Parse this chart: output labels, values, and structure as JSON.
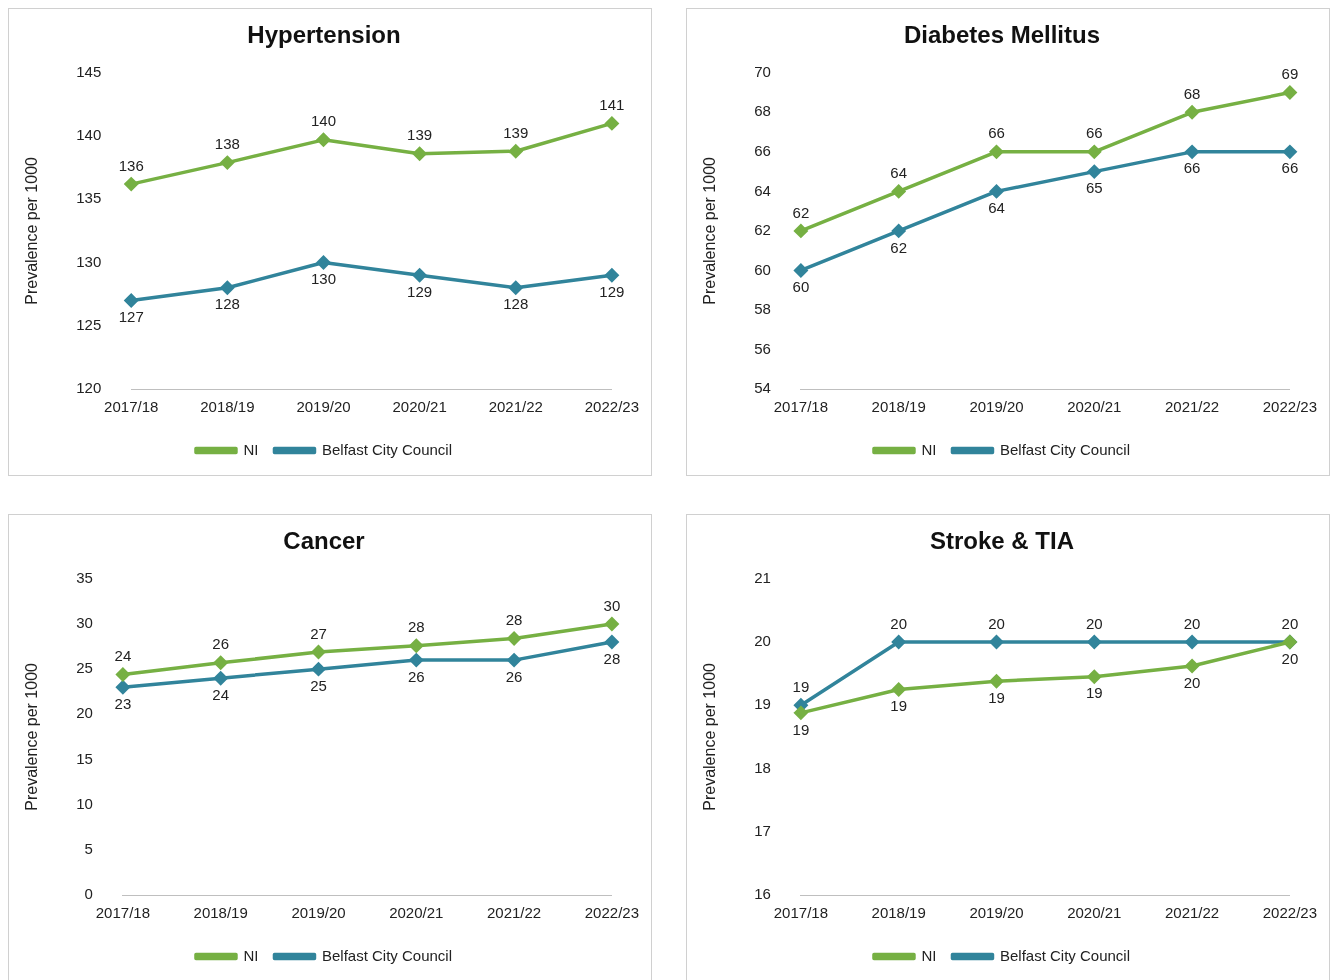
{
  "chart_data": [
    {
      "type": "line",
      "title": "Hypertension",
      "ylabel": "Prevalence per 1000",
      "categories": [
        "2017/18",
        "2018/19",
        "2019/20",
        "2020/21",
        "2021/22",
        "2022/23"
      ],
      "ylim": [
        120,
        145
      ],
      "yticks": [
        120,
        125,
        130,
        135,
        140,
        145
      ],
      "grid": false,
      "legend": "bottom",
      "marker": "diamond",
      "line_style": "solid",
      "series": [
        {
          "name": "NI",
          "color": "#76b043",
          "values": [
            136.2,
            137.9,
            139.7,
            138.6,
            138.8,
            141
          ],
          "value_labels": [
            "136",
            "138",
            "140",
            "139",
            "139",
            "141"
          ]
        },
        {
          "name": "Belfast City Council",
          "color": "#31849b",
          "values": [
            127,
            128,
            130,
            129,
            128,
            129
          ],
          "value_labels": [
            "127",
            "128",
            "130",
            "129",
            "128",
            "129"
          ]
        }
      ]
    },
    {
      "type": "line",
      "title": "Diabetes Mellitus",
      "ylabel": "Prevalence per 1000",
      "categories": [
        "2017/18",
        "2018/19",
        "2019/20",
        "2020/21",
        "2021/22",
        "2022/23"
      ],
      "ylim": [
        54,
        70
      ],
      "yticks": [
        54,
        56,
        58,
        60,
        62,
        64,
        66,
        68,
        70
      ],
      "grid": false,
      "legend": "bottom",
      "marker": "diamond",
      "line_style": "solid",
      "series": [
        {
          "name": "NI",
          "color": "#76b043",
          "values": [
            62,
            64,
            66,
            66,
            68,
            69
          ],
          "value_labels": [
            "62",
            "64",
            "66",
            "66",
            "68",
            "69"
          ]
        },
        {
          "name": "Belfast City Council",
          "color": "#31849b",
          "values": [
            60,
            62,
            64,
            65,
            66,
            66
          ],
          "value_labels": [
            "60",
            "62",
            "64",
            "65",
            "66",
            "66"
          ]
        }
      ]
    },
    {
      "type": "line",
      "title": "Cancer",
      "ylabel": "Prevalence per 1000",
      "categories": [
        "2017/18",
        "2018/19",
        "2019/20",
        "2020/21",
        "2021/22",
        "2022/23"
      ],
      "ylim": [
        0,
        35
      ],
      "yticks": [
        0,
        5,
        10,
        15,
        20,
        25,
        30,
        35
      ],
      "grid": false,
      "legend": "bottom",
      "marker": "diamond",
      "line_style": "solid",
      "series": [
        {
          "name": "NI",
          "color": "#76b043",
          "values": [
            24.4,
            25.7,
            26.9,
            27.6,
            28.4,
            30
          ],
          "value_labels": [
            "24",
            "26",
            "27",
            "28",
            "28",
            "30"
          ]
        },
        {
          "name": "Belfast City Council",
          "color": "#31849b",
          "values": [
            23,
            24,
            25,
            26,
            26,
            28
          ],
          "value_labels": [
            "23",
            "24",
            "25",
            "26",
            "26",
            "28"
          ]
        }
      ]
    },
    {
      "type": "line",
      "title": "Stroke & TIA",
      "ylabel": "Prevalence per 1000",
      "categories": [
        "2017/18",
        "2018/19",
        "2019/20",
        "2020/21",
        "2021/22",
        "2022/23"
      ],
      "ylim": [
        16,
        21
      ],
      "yticks": [
        16,
        17,
        18,
        19,
        20,
        21
      ],
      "grid": false,
      "legend": "bottom",
      "marker": "diamond",
      "line_style": "solid",
      "series": [
        {
          "name": "NI",
          "color": "#76b043",
          "values": [
            18.88,
            19.25,
            19.38,
            19.45,
            19.62,
            20
          ],
          "value_labels": [
            "19",
            "19",
            "19",
            "19",
            "20",
            "20"
          ]
        },
        {
          "name": "Belfast City Council",
          "color": "#31849b",
          "values": [
            19,
            20,
            20,
            20,
            20,
            20
          ],
          "value_labels": [
            "19",
            "20",
            "20",
            "20",
            "20",
            "20"
          ]
        }
      ]
    }
  ]
}
